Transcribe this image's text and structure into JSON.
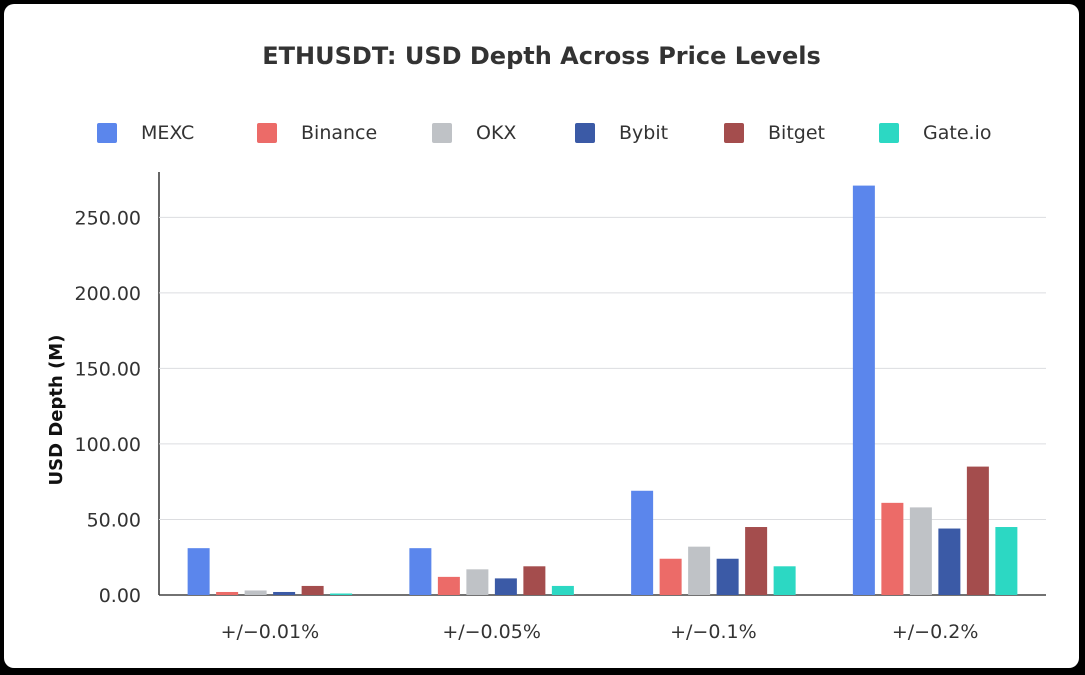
{
  "chart_data": {
    "type": "bar",
    "title": "ETHUSDT: USD Depth Across Price Levels",
    "xlabel": "",
    "ylabel": "USD Depth (M)",
    "ylim": [
      0,
      280
    ],
    "yticks": [
      "0.00",
      "50.00",
      "100.00",
      "150.00",
      "200.00",
      "250.00"
    ],
    "ytick_values": [
      0,
      50,
      100,
      150,
      200,
      250
    ],
    "grid": true,
    "legend_position": "top",
    "categories": [
      "+/−0.01%",
      "+/−0.05%",
      "+/−0.1%",
      "+/−0.2%"
    ],
    "series": [
      {
        "name": "MEXC",
        "color": "#5b86ec",
        "values": [
          31,
          31,
          69,
          271
        ]
      },
      {
        "name": "Binance",
        "color": "#ec6b68",
        "values": [
          2,
          12,
          24,
          61
        ]
      },
      {
        "name": "OKX",
        "color": "#bfc2c6",
        "values": [
          3,
          17,
          32,
          58
        ]
      },
      {
        "name": "Bybit",
        "color": "#3b5aa6",
        "values": [
          2,
          11,
          24,
          44
        ]
      },
      {
        "name": "Bitget",
        "color": "#a44d4d",
        "values": [
          6,
          19,
          45,
          85
        ]
      },
      {
        "name": "Gate.io",
        "color": "#2cd8c3",
        "values": [
          1,
          6,
          19,
          45
        ]
      }
    ]
  }
}
